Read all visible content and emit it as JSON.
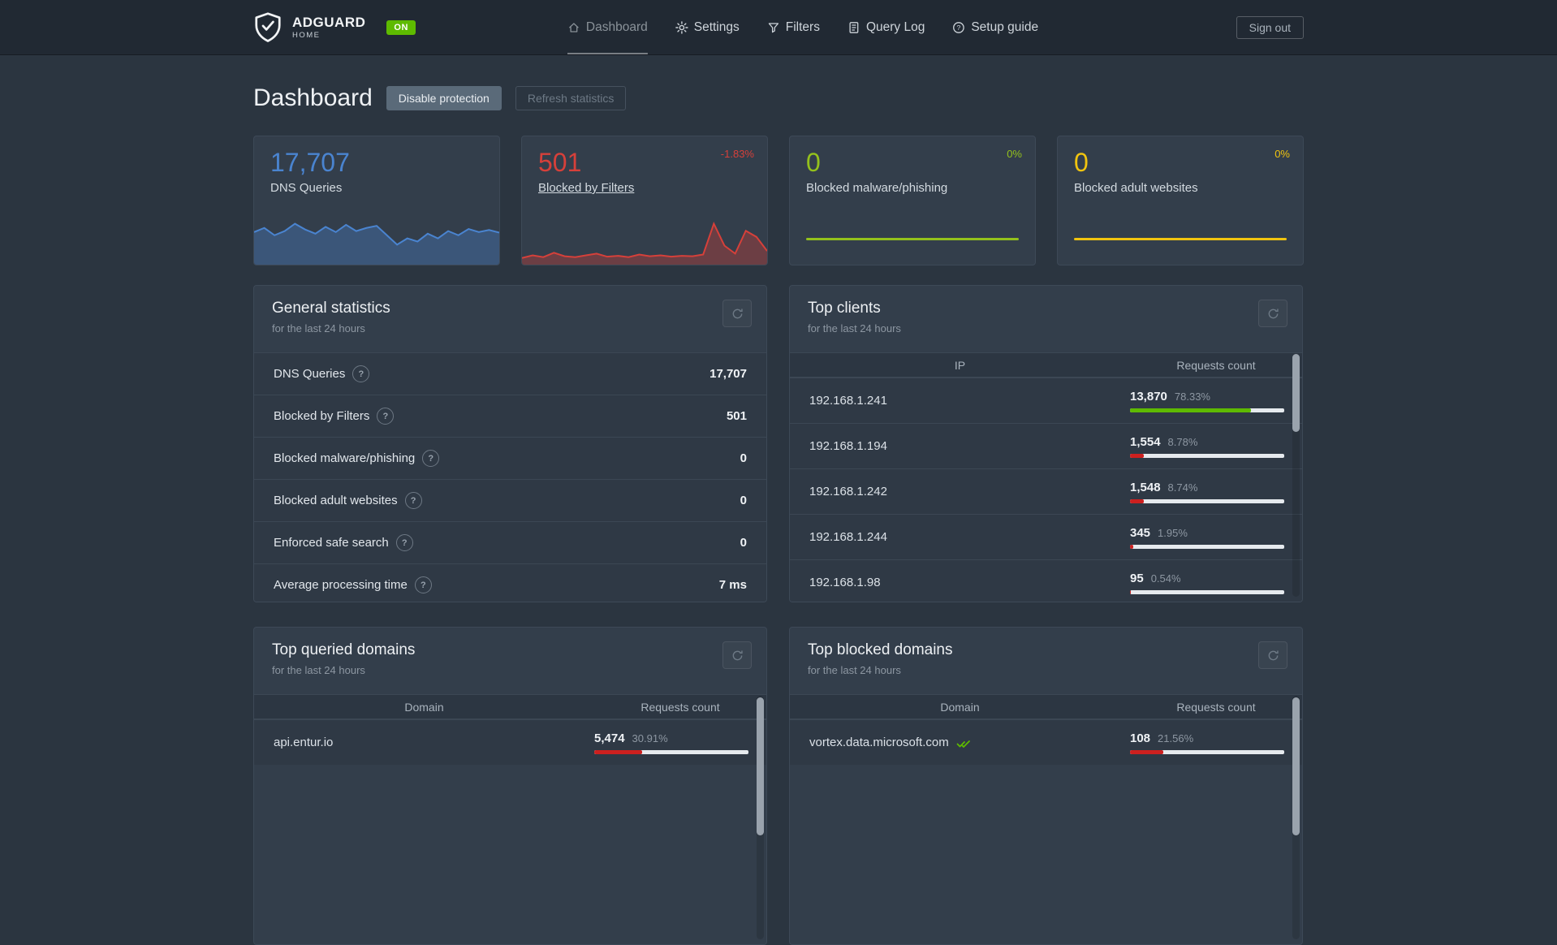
{
  "colors": {
    "badge_on": "#5eba00",
    "bar_track": "#e6eaee",
    "accent_blue": "#4a84d0",
    "accent_red": "#d6403a",
    "accent_green": "#94c11c",
    "accent_yellow": "#f1c40f"
  },
  "icons": {
    "help_glyph": "?",
    "logo": "shield-check",
    "refresh": "refresh-arrows",
    "unblock": "double-check"
  },
  "navbar": {
    "brand": "ADGUARD",
    "brand_sub": "HOME",
    "status_badge": "ON",
    "items": [
      {
        "label": "Dashboard",
        "active": true
      },
      {
        "label": "Settings",
        "active": false
      },
      {
        "label": "Filters",
        "active": false
      },
      {
        "label": "Query Log",
        "active": false
      },
      {
        "label": "Setup guide",
        "active": false
      }
    ],
    "sign_out": "Sign out"
  },
  "header": {
    "title": "Dashboard",
    "buttons": {
      "disable": "Disable protection",
      "refresh": "Refresh statistics"
    }
  },
  "stat_cards": [
    {
      "value": "17,707",
      "label": "DNS Queries",
      "percent": "",
      "color": "#4a84d0"
    },
    {
      "value": "501",
      "label": "Blocked by Filters",
      "percent": "-1.83%",
      "color": "#d6403a"
    },
    {
      "value": "0",
      "label": "Blocked malware/phishing",
      "percent": "0%",
      "color": "#94c11c"
    },
    {
      "value": "0",
      "label": "Blocked adult websites",
      "percent": "0%",
      "color": "#f1c40f"
    }
  ],
  "chart_data": [
    {
      "type": "area",
      "title": "DNS Queries sparkline (last 24 hours)",
      "units": "relative",
      "color": "#4a84d0",
      "values": [
        58,
        66,
        52,
        60,
        74,
        63,
        55,
        68,
        58,
        72,
        60,
        66,
        70,
        52,
        34,
        46,
        40,
        55,
        46,
        60,
        52,
        64,
        58,
        62,
        57
      ]
    },
    {
      "type": "area",
      "title": "Blocked by Filters sparkline (last 24 hours)",
      "units": "relative",
      "color": "#d6403a",
      "values": [
        10,
        16,
        12,
        22,
        14,
        12,
        16,
        20,
        13,
        15,
        12,
        18,
        14,
        16,
        13,
        15,
        14,
        18,
        88,
        38,
        20,
        72,
        58,
        26
      ]
    },
    {
      "type": "line",
      "title": "Blocked malware/phishing sparkline (last 24 hours)",
      "units": "relative",
      "color": "#94c11c",
      "values": [
        0,
        0
      ]
    },
    {
      "type": "line",
      "title": "Blocked adult websites sparkline (last 24 hours)",
      "units": "relative",
      "color": "#f1c40f",
      "values": [
        0,
        0
      ]
    }
  ],
  "general_stats": {
    "title": "General statistics",
    "subtitle": "for the last 24 hours",
    "rows": [
      {
        "label": "DNS Queries",
        "value": "17,707"
      },
      {
        "label": "Blocked by Filters",
        "value": "501"
      },
      {
        "label": "Blocked malware/phishing",
        "value": "0"
      },
      {
        "label": "Blocked adult websites",
        "value": "0"
      },
      {
        "label": "Enforced safe search",
        "value": "0"
      },
      {
        "label": "Average processing time",
        "value": "7 ms"
      }
    ]
  },
  "top_clients": {
    "title": "Top clients",
    "subtitle": "for the last 24 hours",
    "headers": [
      "IP",
      "Requests count"
    ],
    "rows": [
      {
        "ip": "192.168.1.241",
        "count": "13,870",
        "percent": "78.33%",
        "bar": "78.33%",
        "bar_color": "#5eba00"
      },
      {
        "ip": "192.168.1.194",
        "count": "1,554",
        "percent": "8.78%",
        "bar": "8.78%",
        "bar_color": "#cd201f"
      },
      {
        "ip": "192.168.1.242",
        "count": "1,548",
        "percent": "8.74%",
        "bar": "8.74%",
        "bar_color": "#cd201f"
      },
      {
        "ip": "192.168.1.244",
        "count": "345",
        "percent": "1.95%",
        "bar": "1.95%",
        "bar_color": "#cd201f"
      },
      {
        "ip": "192.168.1.98",
        "count": "95",
        "percent": "0.54%",
        "bar": "0.54%",
        "bar_color": "#cd201f"
      }
    ]
  },
  "top_queried": {
    "title": "Top queried domains",
    "subtitle": "for the last 24 hours",
    "headers": [
      "Domain",
      "Requests count"
    ],
    "rows": [
      {
        "domain": "api.entur.io",
        "count": "5,474",
        "percent": "30.91%",
        "bar": "30.91%",
        "bar_color": "#cd201f"
      }
    ]
  },
  "top_blocked": {
    "title": "Top blocked domains",
    "subtitle": "for the last 24 hours",
    "headers": [
      "Domain",
      "Requests count"
    ],
    "rows": [
      {
        "domain": "vortex.data.microsoft.com",
        "count": "108",
        "percent": "21.56%",
        "bar": "21.56%",
        "bar_color": "#cd201f"
      }
    ]
  }
}
